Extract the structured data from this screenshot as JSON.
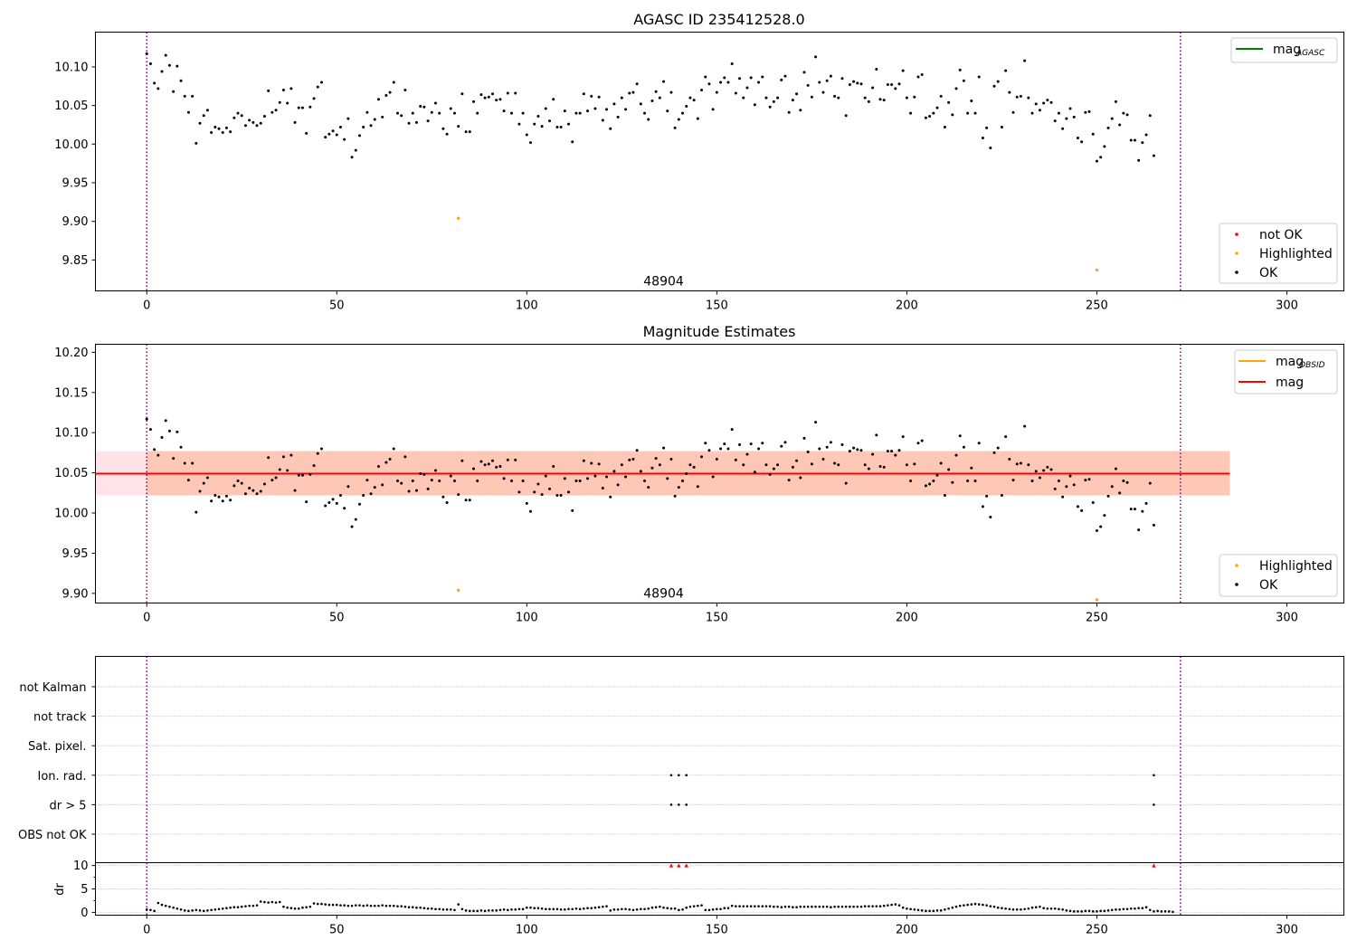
{
  "chart_data": [
    {
      "type": "scatter",
      "title": "AGASC ID 235412528.0",
      "xlabel": "",
      "ylabel": "",
      "xlim": [
        -13.5,
        315
      ],
      "ylim": [
        9.81,
        10.145
      ],
      "xticks": [
        0,
        50,
        100,
        150,
        200,
        250,
        300
      ],
      "yticks": [
        9.85,
        9.9,
        9.95,
        10.0,
        10.05,
        10.1
      ],
      "ytick_labels": [
        "9.85",
        "9.90",
        "9.95",
        "10.00",
        "10.05",
        "10.10"
      ],
      "vlines": [
        0,
        272
      ],
      "vline_color": "#800080",
      "annotation": {
        "text": "48904",
        "x": 136,
        "y": 9.817
      },
      "legend_lines": [
        {
          "label": "mag",
          "sub": "AGASC",
          "color": "#008000"
        }
      ],
      "legend_lines_position": "upper right",
      "legend_points": [
        {
          "label": "not OK",
          "color": "#ff0000"
        },
        {
          "label": "Highlighted",
          "color": "#ffa500"
        },
        {
          "label": "OK",
          "color": "#000000"
        }
      ],
      "legend_points_position": "lower right",
      "ok_series": {
        "name": "OK",
        "color": "#000000",
        "y": [
          10.117,
          10.104,
          10.079,
          10.072,
          10.094,
          10.115,
          10.102,
          10.068,
          10.101,
          10.082,
          10.062,
          10.041,
          10.062,
          10.001,
          10.027,
          10.037,
          10.044,
          10.015,
          10.022,
          10.02,
          10.015,
          10.021,
          10.016,
          10.034,
          10.04,
          10.037,
          10.024,
          10.031,
          10.028,
          10.024,
          10.027,
          10.036,
          10.069,
          10.041,
          10.044,
          10.054,
          10.07,
          10.053,
          10.072,
          10.028,
          10.047,
          10.047,
          10.014,
          10.048,
          10.059,
          10.074,
          10.08,
          10.009,
          10.013,
          10.017,
          10.012,
          10.022,
          10.006,
          10.033,
          9.983,
          9.992,
          10.011,
          10.022,
          10.041,
          10.024,
          10.032,
          10.058,
          10.035,
          10.063,
          10.067,
          10.08,
          10.04,
          10.037,
          10.07,
          10.027,
          10.04,
          10.028,
          10.049,
          10.048,
          10.03,
          10.041,
          10.053,
          10.04,
          10.02,
          10.013,
          10.046,
          10.04,
          10.023,
          10.065,
          10.016,
          10.016,
          10.055,
          10.04,
          10.064,
          10.06,
          10.061,
          10.065,
          10.057,
          10.058,
          10.043,
          10.066,
          10.04,
          10.066,
          10.026,
          10.04,
          10.012,
          10.002,
          10.026,
          10.036,
          10.023,
          10.046,
          10.03,
          10.058,
          10.022,
          10.022,
          10.043,
          10.026,
          10.003,
          10.04,
          10.04,
          10.065,
          10.043,
          10.062,
          10.046,
          10.061,
          10.031,
          10.045,
          10.02,
          10.052,
          10.035,
          10.06,
          10.045,
          10.066,
          10.067,
          10.078,
          10.052,
          10.04,
          10.032,
          10.056,
          10.068,
          10.06,
          10.081,
          10.043,
          10.067,
          10.021,
          10.032,
          10.04,
          10.049,
          10.06,
          10.057,
          10.033,
          10.07,
          10.087,
          10.078,
          10.045,
          10.067,
          10.08,
          10.086,
          10.08,
          10.104,
          10.066,
          10.085,
          10.06,
          10.073,
          10.086,
          10.051,
          10.08,
          10.087,
          10.06,
          10.048,
          10.055,
          10.06,
          10.083,
          10.088,
          10.041,
          10.057,
          10.065,
          10.044,
          10.093,
          10.076,
          10.061,
          10.113,
          10.08,
          10.067,
          10.082,
          10.088,
          10.062,
          10.06,
          10.085,
          10.037,
          10.077,
          10.081,
          10.079,
          10.078,
          10.06,
          10.055,
          10.073,
          10.097,
          10.058,
          10.057,
          10.077,
          10.077,
          10.072,
          10.078,
          10.095,
          10.06,
          10.04,
          10.061,
          10.087,
          10.09,
          10.034,
          10.036,
          10.04,
          10.047,
          10.062,
          10.022,
          10.054,
          10.038,
          10.072,
          10.096,
          10.082,
          10.04,
          10.056,
          10.04,
          10.087,
          10.008,
          10.021,
          9.995,
          10.075,
          10.081,
          10.022,
          10.095,
          10.067,
          10.041,
          10.061,
          10.062,
          10.108,
          10.06,
          10.04,
          10.052,
          10.044,
          10.053,
          10.057,
          10.054,
          10.03,
          10.04,
          10.02,
          10.033,
          10.046,
          10.035,
          10.008,
          10.003,
          10.041,
          10.042,
          10.013,
          9.978,
          9.983,
          9.997,
          10.021,
          10.033,
          10.055,
          10.025,
          10.04,
          10.038,
          10.005,
          10.005,
          9.979,
          10.002,
          10.012,
          10.037,
          9.985
        ]
      },
      "highlighted_series": {
        "name": "Highlighted",
        "color": "#ffa500",
        "x": [
          82,
          250
        ],
        "y": [
          9.904,
          9.837
        ]
      }
    },
    {
      "type": "scatter",
      "title": "Magnitude Estimates",
      "xlabel": "",
      "ylabel": "",
      "xlim": [
        -13.5,
        315
      ],
      "ylim": [
        9.888,
        10.21
      ],
      "xticks": [
        0,
        50,
        100,
        150,
        200,
        250,
        300
      ],
      "yticks": [
        9.9,
        9.95,
        10.0,
        10.05,
        10.1,
        10.15,
        10.2
      ],
      "ytick_labels": [
        "9.90",
        "9.95",
        "10.00",
        "10.05",
        "10.10",
        "10.15",
        "10.20"
      ],
      "vlines": [
        0,
        272
      ],
      "vline_color": "#800080",
      "annotation": {
        "text": "48904",
        "x": 136,
        "y": 9.895
      },
      "mag_line": {
        "name": "mag",
        "y": 10.049,
        "color": "#ff0000",
        "x_range": [
          -13.5,
          285
        ]
      },
      "mag_band": {
        "y": [
          10.022,
          10.077
        ],
        "color": "#ffc0cb",
        "x_range": [
          -13.5,
          285
        ]
      },
      "obsid_line": {
        "name": "mag",
        "y": 10.049,
        "color": "#ffa500",
        "x_range": [
          0,
          285
        ]
      },
      "obsid_band": {
        "y": [
          10.022,
          10.077
        ],
        "color": "#ffb08a",
        "x_range": [
          0,
          285
        ]
      },
      "legend_lines": [
        {
          "label": "mag",
          "sub": "OBSID",
          "color": "#ffa500"
        },
        {
          "label": "mag",
          "sub": "",
          "color": "#ff0000"
        }
      ],
      "legend_lines_position": "upper right",
      "legend_points": [
        {
          "label": "Highlighted",
          "color": "#ffa500"
        },
        {
          "label": "OK",
          "color": "#000000"
        }
      ],
      "legend_points_position": "lower right",
      "highlighted_series": {
        "name": "Highlighted",
        "color": "#ffa500",
        "x": [
          82,
          250
        ],
        "y": [
          9.904,
          9.892
        ]
      }
    },
    {
      "type": "scatter",
      "title": "",
      "xlim": [
        -13.5,
        315
      ],
      "categories": [
        "not Kalman",
        "not track",
        "Sat. pixel.",
        "Ion. rad.",
        "dr > 5",
        "OBS not OK"
      ],
      "flags": {
        "Ion. rad.": [
          138,
          140,
          142,
          265
        ],
        "dr > 5": [
          138,
          140,
          142,
          265
        ]
      },
      "vlines": [
        0,
        272
      ],
      "vline_color": "#800080"
    },
    {
      "type": "scatter",
      "title": "",
      "xlabel": "",
      "ylabel": "dr",
      "xlim": [
        -13.5,
        315
      ],
      "ylim": [
        -0.6,
        10.6
      ],
      "xticks": [
        0,
        50,
        100,
        150,
        200,
        250,
        300
      ],
      "yticks": [
        0,
        5,
        10
      ],
      "ytick_labels": [
        "0",
        "5",
        "10"
      ],
      "grid": true,
      "vlines": [
        0,
        272
      ],
      "vline_color": "#800080",
      "dr_series": {
        "name": "dr",
        "color": "#000000",
        "y": [
          0.6,
          0.5,
          0.3,
          2.0,
          1.6,
          1.4,
          1.2,
          1.0,
          0.8,
          0.6,
          0.4,
          0.3,
          0.4,
          0.5,
          0.4,
          0.3,
          0.4,
          0.5,
          0.6,
          0.7,
          0.8,
          0.9,
          1.0,
          1.1,
          1.1,
          1.2,
          1.3,
          1.4,
          1.4,
          1.5,
          2.3,
          2.2,
          2.1,
          2.2,
          2.1,
          2.2,
          1.2,
          1.0,
          0.9,
          0.8,
          0.8,
          1.0,
          1.1,
          1.2,
          1.9,
          1.8,
          1.8,
          1.7,
          1.6,
          1.6,
          1.6,
          1.5,
          1.5,
          1.4,
          1.4,
          1.5,
          1.5,
          1.4,
          1.5,
          1.4,
          1.4,
          1.4,
          1.5,
          1.4,
          1.4,
          1.4,
          1.3,
          1.3,
          1.2,
          1.1,
          1.1,
          1.0,
          1.0,
          0.9,
          0.8,
          0.8,
          0.7,
          0.7,
          0.6,
          0.6,
          0.6,
          0.5,
          1.7,
          0.7,
          0.4,
          0.3,
          0.3,
          0.3,
          0.4,
          0.3,
          0.4,
          0.4,
          0.4,
          0.5,
          0.6,
          0.5,
          0.6,
          0.6,
          0.7,
          0.7,
          1.0,
          1.0,
          0.9,
          0.9,
          0.8,
          0.7,
          0.7,
          0.7,
          0.7,
          0.6,
          0.6,
          0.7,
          0.7,
          0.8,
          0.7,
          0.8,
          0.9,
          0.9,
          1.0,
          1.1,
          1.2,
          1.3,
          0.4,
          0.6,
          0.6,
          0.7,
          0.7,
          0.6,
          0.5,
          0.6,
          0.7,
          0.7,
          0.8,
          1.0,
          1.1,
          1.2,
          1.0,
          0.9,
          0.8,
          0.8,
          0.5,
          0.6,
          1.0,
          1.2,
          1.3,
          1.4,
          1.5,
          0.5,
          0.5,
          0.6,
          0.7,
          0.7,
          0.9,
          0.9,
          1.4,
          1.3,
          1.3,
          1.3,
          1.3,
          1.3,
          1.3,
          1.3,
          1.3,
          1.3,
          1.3,
          1.2,
          1.2,
          1.1,
          1.2,
          1.2,
          1.1,
          1.1,
          1.2,
          1.2,
          1.2,
          1.2,
          1.2,
          1.2,
          1.2,
          1.2,
          1.1,
          1.2,
          1.2,
          1.2,
          1.2,
          1.2,
          1.2,
          1.2,
          1.2,
          1.3,
          1.3,
          1.3,
          1.3,
          1.3,
          1.4,
          1.5,
          1.6,
          1.7,
          1.5,
          1.0,
          0.8,
          0.7,
          0.6,
          0.5,
          0.4,
          0.3,
          0.3,
          0.3,
          0.4,
          0.4,
          0.6,
          0.8,
          1.0,
          1.2,
          1.4,
          1.5,
          1.6,
          1.7,
          1.8,
          1.7,
          1.6,
          1.5,
          1.3,
          1.2,
          1.0,
          0.9,
          0.8,
          0.7,
          0.6,
          0.6,
          0.6,
          0.7,
          0.8,
          1.0,
          1.1,
          1.2,
          0.9,
          0.8,
          0.8,
          0.8,
          0.7,
          0.6,
          0.4,
          0.3,
          0.2,
          0.2,
          0.2,
          0.3,
          0.3,
          0.2,
          0.2,
          0.3,
          0.3,
          0.4,
          0.5,
          0.6,
          0.6,
          0.7,
          0.7,
          0.8,
          0.8,
          0.9,
          0.9,
          1.1,
          0.5,
          0.2,
          0.3,
          0.2,
          0.2,
          0.2,
          0.1
        ]
      },
      "flagged_series": {
        "name": "dr flagged",
        "color": "#ff0000",
        "marker": "triangle",
        "x": [
          138,
          140,
          142,
          265
        ],
        "y": [
          10,
          10,
          10,
          10
        ]
      }
    }
  ]
}
